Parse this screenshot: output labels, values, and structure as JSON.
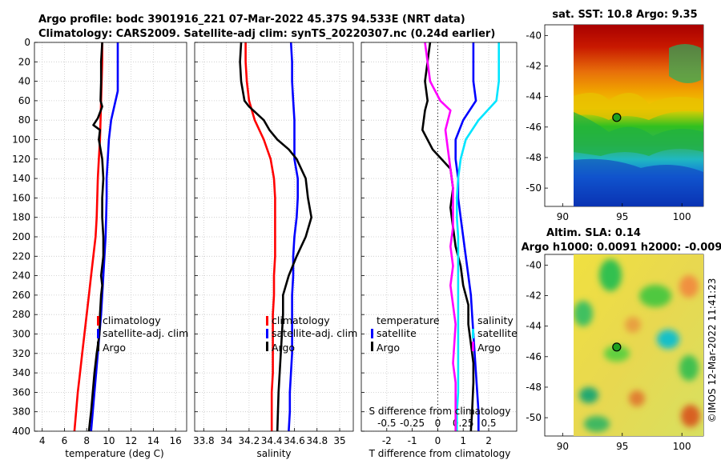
{
  "header": {
    "title_line1": "Argo profile: bodc 3901916_221 07-Mar-2022 45.37S 94.533E (NRT data)",
    "title_line2": "Climatology: CARS2009. Satellite-adj clim: synTS_20220307.nc (0.24d earlier)"
  },
  "colors": {
    "climatology": "#ff0000",
    "satellite": "#0000ff",
    "argo": "#000000",
    "sat_salinity": "#00e5ff",
    "argo_salinity_diff": "#ff00ff"
  },
  "chart_data": [
    {
      "type": "line",
      "name": "temperature-panel",
      "xlabel": "temperature (deg C)",
      "ylabel": "depth",
      "xlim": [
        3.3,
        17
      ],
      "ylim": [
        400,
        0
      ],
      "xticks": [
        4,
        6,
        8,
        10,
        12,
        14,
        16
      ],
      "yticks": [
        0,
        20,
        40,
        60,
        80,
        100,
        120,
        140,
        160,
        180,
        200,
        220,
        240,
        260,
        280,
        300,
        320,
        340,
        360,
        380,
        400
      ],
      "legend": [
        "climatology",
        "satellite-adj. clim",
        "Argo"
      ],
      "series": [
        {
          "name": "climatology",
          "color": "#ff0000",
          "x": [
            9.4,
            9.4,
            9.35,
            9.3,
            9.25,
            9.2,
            9.1,
            9.0,
            8.95,
            8.9,
            8.8,
            8.6,
            8.4,
            8.2,
            8.0,
            7.8,
            7.6,
            7.4,
            7.2,
            7.05,
            6.9
          ],
          "depth": [
            0,
            20,
            40,
            60,
            80,
            100,
            120,
            140,
            160,
            180,
            200,
            220,
            240,
            260,
            280,
            300,
            320,
            340,
            360,
            380,
            400
          ]
        },
        {
          "name": "satellite-adj. clim",
          "color": "#0000ff",
          "x": [
            10.8,
            10.8,
            10.8,
            10.8,
            10.2,
            10.0,
            9.9,
            9.8,
            9.8,
            9.75,
            9.7,
            9.6,
            9.5,
            9.4,
            9.3,
            9.15,
            9.0,
            8.85,
            8.7,
            8.55,
            8.4
          ],
          "depth": [
            0,
            20,
            40,
            50,
            80,
            100,
            120,
            140,
            160,
            180,
            200,
            220,
            240,
            260,
            280,
            300,
            320,
            340,
            360,
            380,
            400
          ]
        },
        {
          "name": "Argo",
          "color": "#000000",
          "x": [
            9.4,
            9.3,
            9.3,
            9.25,
            9.4,
            9.0,
            8.6,
            9.2,
            9.1,
            9.4,
            9.5,
            9.4,
            9.4,
            9.5,
            9.5,
            9.4,
            9.3,
            9.4,
            9.3,
            9.2,
            9.15,
            8.9,
            8.7,
            8.55,
            8.4,
            8.3,
            8.2
          ],
          "depth": [
            0,
            20,
            40,
            60,
            66,
            78,
            85,
            90,
            100,
            120,
            140,
            160,
            180,
            200,
            220,
            230,
            240,
            250,
            260,
            280,
            300,
            320,
            340,
            360,
            380,
            390,
            400
          ]
        }
      ]
    },
    {
      "type": "line",
      "name": "salinity-panel",
      "xlabel": "salinity",
      "xlim": [
        33.72,
        35.12
      ],
      "ylim": [
        400,
        0
      ],
      "xticks": [
        "33.8",
        "34",
        "34.2",
        "34.4",
        "34.6",
        "34.8",
        "35"
      ],
      "legend": [
        "climatology",
        "satellite-adj. clim",
        "Argo"
      ],
      "series": [
        {
          "name": "climatology",
          "color": "#ff0000",
          "x": [
            34.17,
            34.17,
            34.18,
            34.2,
            34.25,
            34.33,
            34.39,
            34.42,
            34.43,
            34.43,
            34.43,
            34.43,
            34.42,
            34.42,
            34.41,
            34.41,
            34.41,
            34.41,
            34.4,
            34.4,
            34.4
          ],
          "depth": [
            0,
            20,
            40,
            60,
            80,
            100,
            120,
            140,
            160,
            180,
            200,
            220,
            240,
            260,
            280,
            300,
            320,
            340,
            360,
            380,
            400
          ]
        },
        {
          "name": "satellite-adj. clim",
          "color": "#0000ff",
          "x": [
            34.57,
            34.58,
            34.58,
            34.59,
            34.6,
            34.6,
            34.6,
            34.63,
            34.63,
            34.62,
            34.6,
            34.59,
            34.59,
            34.58,
            34.58,
            34.58,
            34.58,
            34.57,
            34.56,
            34.56,
            34.55
          ],
          "depth": [
            0,
            20,
            40,
            60,
            80,
            100,
            120,
            140,
            160,
            180,
            200,
            220,
            240,
            260,
            280,
            300,
            320,
            340,
            360,
            380,
            400
          ]
        },
        {
          "name": "Argo",
          "color": "#000000",
          "x": [
            34.13,
            34.12,
            34.13,
            34.16,
            34.2,
            34.33,
            34.38,
            34.45,
            34.55,
            34.62,
            34.7,
            34.72,
            34.75,
            34.7,
            34.62,
            34.55,
            34.5,
            34.5,
            34.48,
            34.46,
            34.45
          ],
          "depth": [
            0,
            20,
            40,
            60,
            66,
            80,
            90,
            100,
            110,
            120,
            140,
            160,
            180,
            200,
            220,
            240,
            260,
            280,
            320,
            360,
            400
          ]
        }
      ]
    },
    {
      "type": "line",
      "name": "difference-panel",
      "xlabel": "T difference from climatology",
      "xlabel_secondary": "S difference from climatology",
      "xlim": [
        -3,
        3.1
      ],
      "ylim": [
        400,
        0
      ],
      "xticks": [
        "-2",
        "-1",
        "0",
        "1",
        "2"
      ],
      "secondary_ticks": [
        "-0.5",
        "-0.25",
        "0",
        "0.25",
        "0.5"
      ],
      "legend": {
        "temperature_header": "temperature",
        "salinity_header": "salinity",
        "items": [
          "satellite",
          "Argo",
          "satellite",
          "Argo"
        ]
      },
      "series": [
        {
          "name": "temperature satellite",
          "color": "#0000ff",
          "x": [
            1.4,
            1.4,
            1.4,
            1.5,
            1.0,
            0.7,
            0.7,
            0.8,
            0.8,
            0.9,
            1.0,
            1.1,
            1.2,
            1.3,
            1.35,
            1.4,
            1.45,
            1.5,
            1.55,
            1.6,
            1.6
          ],
          "depth": [
            0,
            20,
            40,
            60,
            80,
            100,
            120,
            140,
            160,
            180,
            200,
            220,
            240,
            260,
            280,
            300,
            320,
            340,
            360,
            380,
            400
          ]
        },
        {
          "name": "temperature Argo",
          "color": "#000000",
          "x": [
            -0.3,
            -0.4,
            -0.5,
            -0.4,
            -0.5,
            -0.6,
            -0.2,
            0.5,
            0.6,
            0.5,
            0.6,
            0.7,
            0.9,
            1.0,
            1.2,
            1.2,
            1.3,
            1.4,
            1.4,
            1.35,
            1.3
          ],
          "depth": [
            0,
            20,
            40,
            60,
            70,
            90,
            110,
            130,
            150,
            170,
            190,
            210,
            230,
            250,
            270,
            290,
            310,
            330,
            350,
            380,
            400
          ]
        },
        {
          "name": "salinity satellite",
          "color": "#00e5ff",
          "x": [
            2.4,
            2.4,
            2.4,
            2.3,
            1.6,
            1.1,
            0.9,
            0.8,
            0.75,
            0.75,
            0.8,
            0.8,
            0.8,
            0.8,
            0.8,
            0.8,
            0.8,
            0.8,
            0.8,
            0.75,
            0.75
          ],
          "depth": [
            0,
            20,
            40,
            60,
            80,
            100,
            120,
            140,
            160,
            180,
            200,
            220,
            240,
            260,
            280,
            300,
            320,
            340,
            360,
            380,
            400
          ]
        },
        {
          "name": "salinity Argo",
          "color": "#ff00ff",
          "x": [
            -0.5,
            -0.4,
            -0.3,
            0.1,
            0.5,
            0.3,
            0.4,
            0.5,
            0.6,
            0.6,
            0.6,
            0.5,
            0.6,
            0.5,
            0.6,
            0.7,
            0.65,
            0.6,
            0.7,
            0.7,
            0.7
          ],
          "depth": [
            0,
            20,
            40,
            60,
            70,
            90,
            110,
            130,
            150,
            170,
            190,
            210,
            230,
            250,
            270,
            290,
            310,
            330,
            350,
            380,
            400
          ]
        }
      ]
    },
    {
      "type": "heatmap",
      "name": "sst-map",
      "title": "sat. SST: 10.8 Argo: 9.35",
      "xlim": [
        88.5,
        101.8
      ],
      "ylim": [
        -51.2,
        -39.3
      ],
      "xticks": [
        "90",
        "95",
        "100"
      ],
      "yticks": [
        "-40",
        "-42",
        "-44",
        "-46",
        "-48",
        "-50"
      ],
      "argo_position": {
        "lon": 94.533,
        "lat": -45.37
      }
    },
    {
      "type": "heatmap",
      "name": "sla-map",
      "title_line1": "Altim. SLA: 0.14",
      "title_line2": "Argo h1000: 0.0091 h2000: -0.009",
      "xlim": [
        88.5,
        101.8
      ],
      "ylim": [
        -51.2,
        -39.3
      ],
      "xticks": [
        "90",
        "95",
        "100"
      ],
      "yticks": [
        "-40",
        "-42",
        "-44",
        "-46",
        "-48",
        "-50"
      ],
      "argo_position": {
        "lon": 94.533,
        "lat": -45.37
      }
    }
  ],
  "side_label": "©IMOS 12-Mar-2022 11:41:23"
}
